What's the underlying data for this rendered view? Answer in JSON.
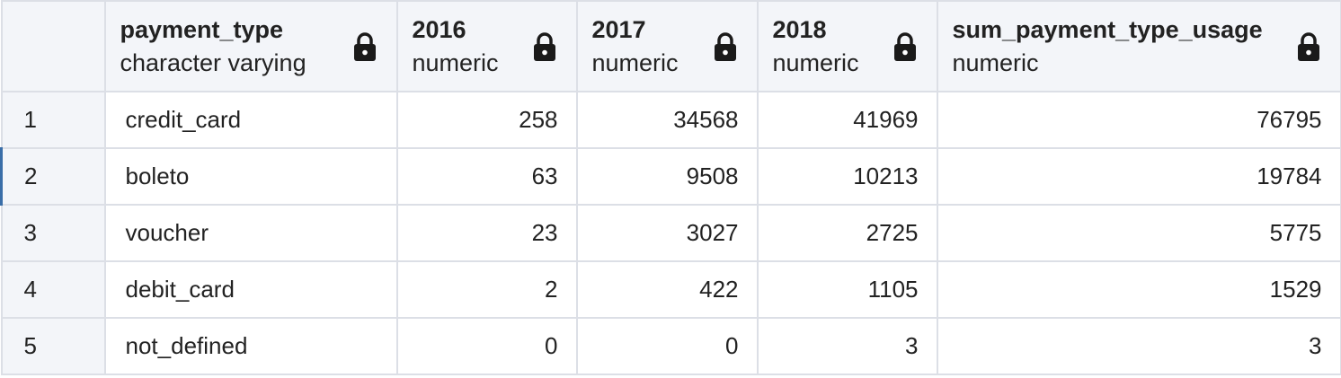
{
  "columns": [
    {
      "name": "payment_type",
      "type": "character varying",
      "align": "left"
    },
    {
      "name": "2016",
      "type": "numeric",
      "align": "right"
    },
    {
      "name": "2017",
      "type": "numeric",
      "align": "right"
    },
    {
      "name": "2018",
      "type": "numeric",
      "align": "right"
    },
    {
      "name": "sum_payment_type_usage",
      "type": "numeric",
      "align": "right"
    }
  ],
  "rows": [
    {
      "num": "1",
      "cells": [
        "credit_card",
        "258",
        "34568",
        "41969",
        "76795"
      ]
    },
    {
      "num": "2",
      "cells": [
        "boleto",
        "63",
        "9508",
        "10213",
        "19784"
      ]
    },
    {
      "num": "3",
      "cells": [
        "voucher",
        "23",
        "3027",
        "2725",
        "5775"
      ]
    },
    {
      "num": "4",
      "cells": [
        "debit_card",
        "2",
        "422",
        "1105",
        "1529"
      ]
    },
    {
      "num": "5",
      "cells": [
        "not_defined",
        "0",
        "0",
        "3",
        "3"
      ]
    }
  ],
  "icons": {
    "column_lock": "lock-icon"
  },
  "colors": {
    "header_bg": "#f3f5f9",
    "grid_line": "#dcdfe6",
    "text": "#222222",
    "selected_row_marker": "#3a6ea8"
  }
}
